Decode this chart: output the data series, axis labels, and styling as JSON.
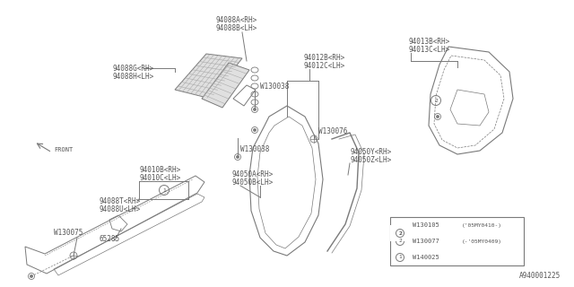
{
  "bg_color": "#ffffff",
  "line_color": "#7a7a7a",
  "text_color": "#555555",
  "part_number_bottom": "A940001225",
  "legend_rows": [
    {
      "circle": "1",
      "col1": "W140025",
      "col2": ""
    },
    {
      "circle": "2",
      "col1": "W130077",
      "col2": "(-’05MY0409)"
    },
    {
      "circle": "2b",
      "col1": "W130105",
      "col2": "(’05MY0410-)"
    }
  ],
  "labels_88AB": [
    "94088A<RH>",
    "94088B<LH>"
  ],
  "labels_88GH": [
    "94088G<RH>",
    "94088H<LH>"
  ],
  "labels_12BC": [
    "94012B<RH>",
    "94012C<LH>"
  ],
  "labels_13BC": [
    "94013B<RH>",
    "94013C<LH>"
  ],
  "labels_10BC": [
    "94010B<RH>",
    "94010C<LH>"
  ],
  "labels_50AB": [
    "94050A<RH>",
    "94050B<LH>"
  ],
  "labels_50YZ": [
    "94050Y<RH>",
    "94050Z<LH>"
  ],
  "labels_88TU": [
    "94088T<RH>",
    "94088U<LH>"
  ],
  "W130038": "W130038",
  "W130038b": "W130038",
  "W130076": "W130076",
  "W130075": "W130075",
  "label_65285": "65285",
  "label_FRONT": "FRONT"
}
